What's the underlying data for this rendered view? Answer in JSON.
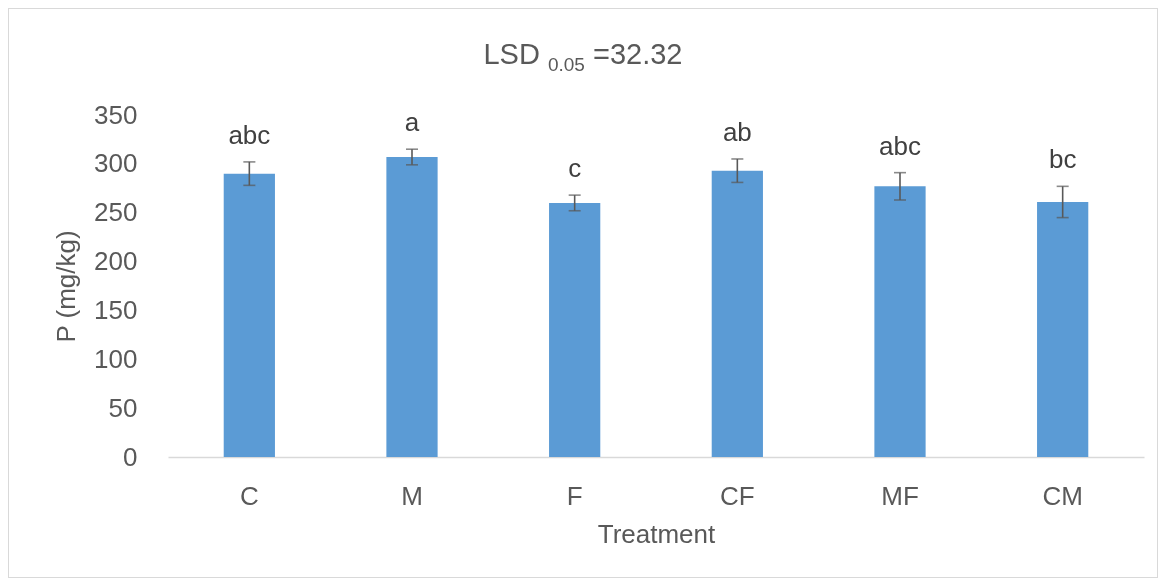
{
  "chart_data": {
    "type": "bar",
    "title": "LSD $_{0.05}$ =32.32",
    "xlabel": "Treatment",
    "ylabel": "P (mg/kg)",
    "categories": [
      "C",
      "M",
      "F",
      "CF",
      "MF",
      "CM"
    ],
    "values": [
      290,
      307,
      260,
      293,
      277,
      261
    ],
    "errors": [
      12,
      8,
      8,
      12,
      14,
      16
    ],
    "color": "#5b9bd5",
    "ylim": [
      0,
      350
    ],
    "yticks": [
      0,
      50,
      100,
      150,
      200,
      250,
      300,
      350
    ],
    "annotations": [
      "abc",
      "a",
      "c",
      "ab",
      "abc",
      "bc"
    ]
  }
}
